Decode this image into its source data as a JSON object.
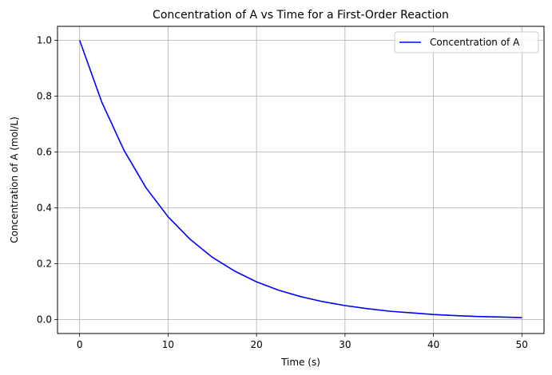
{
  "chart_data": {
    "type": "line",
    "title": "Concentration of A vs Time for a First-Order Reaction",
    "xlabel": "Time (s)",
    "ylabel": "Concentration of A (mol/L)",
    "xlim": [
      -2.5,
      52.5
    ],
    "ylim": [
      -0.05,
      1.05
    ],
    "xticks": [
      0,
      10,
      20,
      30,
      40,
      50
    ],
    "xtick_labels": [
      "0",
      "10",
      "20",
      "30",
      "40",
      "50"
    ],
    "yticks": [
      0.0,
      0.2,
      0.4,
      0.6,
      0.8,
      1.0
    ],
    "ytick_labels": [
      "0.0",
      "0.2",
      "0.4",
      "0.6",
      "0.8",
      "1.0"
    ],
    "grid": true,
    "legend_position": "top-right",
    "series": [
      {
        "name": "Concentration of A",
        "color": "#0000ff",
        "x": [
          0,
          2.5,
          5,
          7.5,
          10,
          12.5,
          15,
          17.5,
          20,
          22.5,
          25,
          27.5,
          30,
          32.5,
          35,
          37.5,
          40,
          42.5,
          45,
          47.5,
          50
        ],
        "y": [
          1.0,
          0.779,
          0.607,
          0.472,
          0.368,
          0.287,
          0.223,
          0.174,
          0.135,
          0.105,
          0.082,
          0.064,
          0.05,
          0.039,
          0.03,
          0.024,
          0.018,
          0.014,
          0.011,
          0.009,
          0.007
        ]
      }
    ]
  }
}
